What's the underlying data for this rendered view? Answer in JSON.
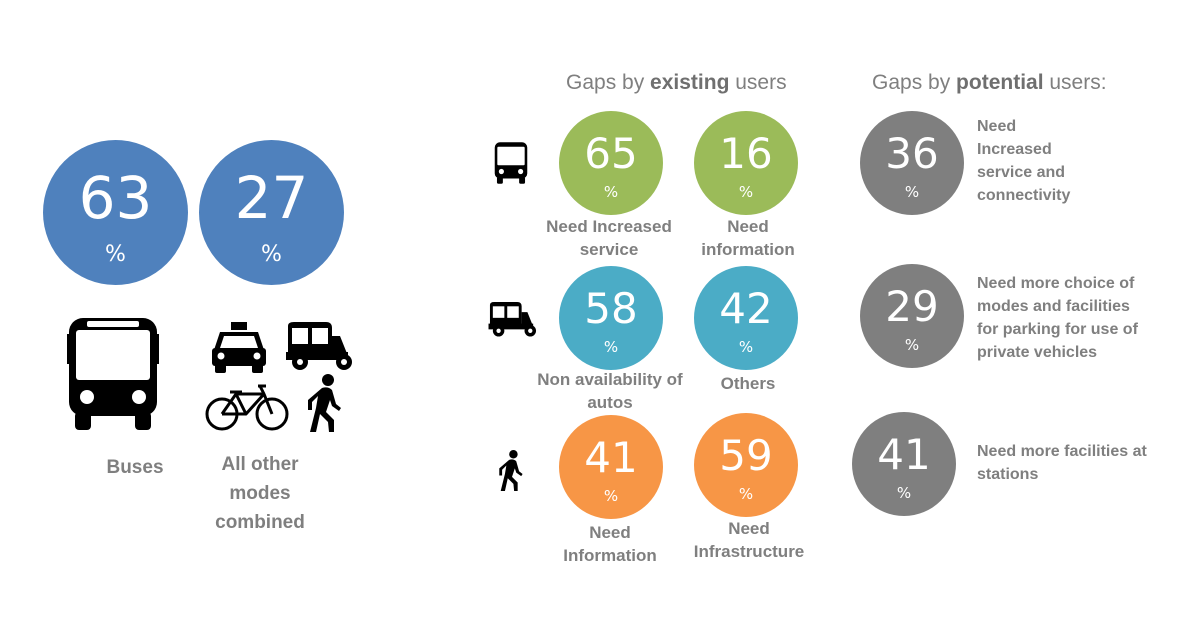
{
  "colors": {
    "blue": "#4f81bd",
    "green": "#9bbb59",
    "teal": "#4bacc6",
    "orange": "#f79646",
    "gray": "#7f7f7f"
  },
  "overall": {
    "buses": {
      "value": "63",
      "unit": "%",
      "label": "Buses"
    },
    "others": {
      "value": "27",
      "unit": "%",
      "label": "All other modes combined"
    }
  },
  "headers": {
    "existing": {
      "prefix": "Gaps by ",
      "bold": "existing",
      "suffix": " users"
    },
    "potential": {
      "prefix": "Gaps by ",
      "bold": "potential",
      "suffix": " users:"
    }
  },
  "rows": [
    {
      "icon": "bus-icon",
      "existing": [
        {
          "value": "65",
          "unit": "%",
          "label": "Need Increased service",
          "color": "#9bbb59"
        },
        {
          "value": "16",
          "unit": "%",
          "label": "Need information",
          "color": "#9bbb59"
        }
      ],
      "potential": {
        "value": "36",
        "unit": "%",
        "label": "Need Increased service and connectivity"
      }
    },
    {
      "icon": "auto-rickshaw-icon",
      "existing": [
        {
          "value": "58",
          "unit": "%",
          "label": "Non availability of autos",
          "color": "#4bacc6"
        },
        {
          "value": "42",
          "unit": "%",
          "label": "Others",
          "color": "#4bacc6"
        }
      ],
      "potential": {
        "value": "29",
        "unit": "%",
        "label": "Need more choice of modes and facilities for parking for use of private vehicles"
      }
    },
    {
      "icon": "pedestrian-icon",
      "existing": [
        {
          "value": "41",
          "unit": "%",
          "label": "Need Information",
          "color": "#f79646"
        },
        {
          "value": "59",
          "unit": "%",
          "label": "Need Infrastructure",
          "color": "#f79646"
        }
      ],
      "potential": {
        "value": "41",
        "unit": "%",
        "label": "Need more facilities at stations"
      }
    }
  ]
}
